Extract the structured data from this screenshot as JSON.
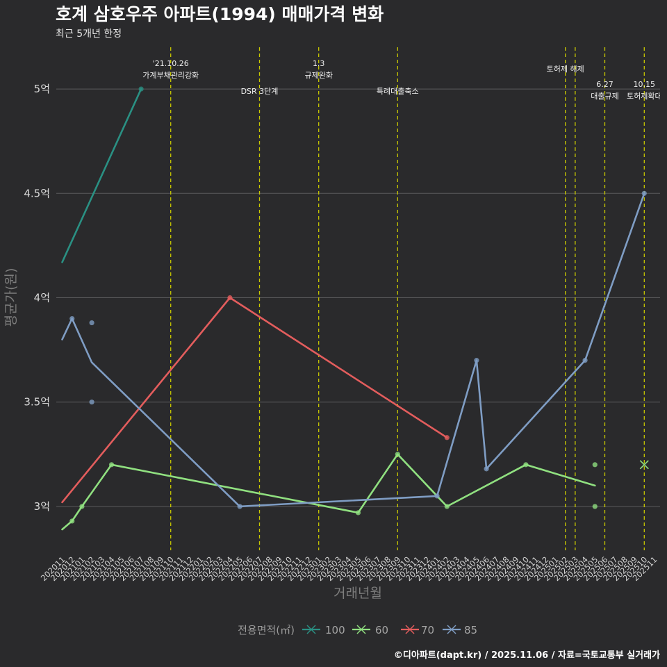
{
  "chart_data": {
    "type": "line",
    "title": "호계 삼호우주 아파트(1994) 매매가격 변화",
    "subtitle": "최근 5개년 한정",
    "xlabel": "거래년월",
    "ylabel": "평균가(원)",
    "ylim": [
      2.79,
      5.2
    ],
    "grid": true,
    "legend_position": "bottom",
    "legend_title": "전용면적(㎡)",
    "yticks": [
      {
        "value": 3,
        "label": "3억"
      },
      {
        "value": 3.5,
        "label": "3.5억"
      },
      {
        "value": 4,
        "label": "4억"
      },
      {
        "value": 4.5,
        "label": "4.5억"
      },
      {
        "value": 5,
        "label": "5억"
      }
    ],
    "categories": [
      "202011",
      "202012",
      "202101",
      "202102",
      "202103",
      "202104",
      "202105",
      "202106",
      "202107",
      "202108",
      "202109",
      "202110",
      "202111",
      "202112",
      "202201",
      "202202",
      "202203",
      "202204",
      "202205",
      "202206",
      "202207",
      "202208",
      "202209",
      "202210",
      "202211",
      "202212",
      "202301",
      "202302",
      "202303",
      "202304",
      "202305",
      "202306",
      "202307",
      "202308",
      "202309",
      "202310",
      "202311",
      "202312",
      "202401",
      "202402",
      "202403",
      "202404",
      "202405",
      "202406",
      "202407",
      "202408",
      "202409",
      "202410",
      "202411",
      "202412",
      "202501",
      "202502",
      "202503",
      "202504",
      "202505",
      "202506",
      "202507",
      "202508",
      "202509",
      "202510",
      "202511"
    ],
    "series": [
      {
        "name": "100",
        "color": "#2a9083",
        "line": [
          {
            "x": "202011",
            "y": 4.17
          },
          {
            "x": "202107",
            "y": 5.0
          }
        ],
        "points": [
          {
            "x": "202107",
            "y": 5.0
          }
        ]
      },
      {
        "name": "60",
        "color": "#90e080",
        "line": [
          {
            "x": "202011",
            "y": 2.89
          },
          {
            "x": "202012",
            "y": 2.93
          },
          {
            "x": "202101",
            "y": 3.0
          },
          {
            "x": "202104",
            "y": 3.2
          },
          {
            "x": "202305",
            "y": 2.97
          },
          {
            "x": "202309",
            "y": 3.25
          },
          {
            "x": "202402",
            "y": 3.0
          },
          {
            "x": "202410",
            "y": 3.2
          },
          {
            "x": "202505",
            "y": 3.1
          }
        ],
        "points": [
          {
            "x": "202012",
            "y": 2.93
          },
          {
            "x": "202101",
            "y": 3.0
          },
          {
            "x": "202104",
            "y": 3.2
          },
          {
            "x": "202305",
            "y": 2.97
          },
          {
            "x": "202309",
            "y": 3.25
          },
          {
            "x": "202402",
            "y": 3.0
          },
          {
            "x": "202410",
            "y": 3.2
          },
          {
            "x": "202505",
            "y": 3.2
          },
          {
            "x": "202505",
            "y": 3.0
          }
        ],
        "cross_markers": [
          {
            "x": "202510",
            "y": 3.2
          }
        ]
      },
      {
        "name": "70",
        "color": "#e35d5d",
        "line": [
          {
            "x": "202011",
            "y": 3.02
          },
          {
            "x": "202204",
            "y": 4.0
          },
          {
            "x": "202402",
            "y": 3.33
          }
        ],
        "points": [
          {
            "x": "202204",
            "y": 4.0
          },
          {
            "x": "202402",
            "y": 3.33
          }
        ]
      },
      {
        "name": "85",
        "color": "#7f9dc4",
        "line": [
          {
            "x": "202011",
            "y": 3.8
          },
          {
            "x": "202012",
            "y": 3.9
          },
          {
            "x": "202102",
            "y": 3.69
          },
          {
            "x": "202205",
            "y": 3.0
          },
          {
            "x": "202401",
            "y": 3.05
          },
          {
            "x": "202405",
            "y": 3.7
          },
          {
            "x": "202406",
            "y": 3.18
          },
          {
            "x": "202504",
            "y": 3.7
          },
          {
            "x": "202510",
            "y": 4.5
          }
        ],
        "points": [
          {
            "x": "202012",
            "y": 3.9
          },
          {
            "x": "202102",
            "y": 3.88
          },
          {
            "x": "202102",
            "y": 3.5
          },
          {
            "x": "202205",
            "y": 3.0
          },
          {
            "x": "202401",
            "y": 3.05
          },
          {
            "x": "202405",
            "y": 3.7
          },
          {
            "x": "202406",
            "y": 3.18
          },
          {
            "x": "202504",
            "y": 3.7
          },
          {
            "x": "202510",
            "y": 4.5
          }
        ]
      }
    ],
    "event_line_color": "#c9c900",
    "events": [
      {
        "x": "202110",
        "label": [
          "'21.10.26",
          "가계부채관리강화"
        ]
      },
      {
        "x": "202207",
        "label": [
          "DSR 3단계"
        ]
      },
      {
        "x": "202301",
        "label": [
          "1.3",
          "규제완화"
        ]
      },
      {
        "x": "202309",
        "label": [
          "특례대출축소"
        ]
      },
      {
        "x": "202502",
        "label": [
          "토허제 해제"
        ]
      },
      {
        "x": "202503",
        "label": []
      },
      {
        "x": "202506",
        "label": [
          "6.27",
          "대출규제"
        ]
      },
      {
        "x": "202510",
        "label": [
          "10.15",
          "토허제확대"
        ]
      }
    ],
    "caption": "©디아파트(dapt.kr) / 2025.11.06 / 자료=국토교통부 실거래가"
  }
}
